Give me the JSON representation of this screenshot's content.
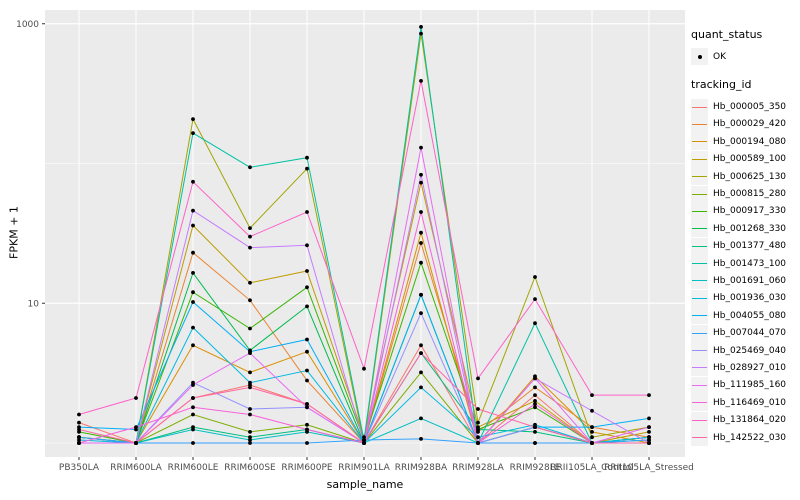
{
  "y_axis": {
    "label": "FPKM + 1",
    "tick_labels": [
      "1000",
      "10"
    ]
  },
  "x_axis": {
    "label": "sample_name"
  },
  "legend": {
    "quant_status_title": "quant_status",
    "ok_label": "OK",
    "tracking_id_title": "tracking_id"
  },
  "colors": {
    "panel_background": "#EBEBEB",
    "gridline": "#FFFFFF",
    "tick_text": "#4D4D4D",
    "point": "#000000",
    "legend_key_background": "#F2F2F2"
  },
  "chart_data": {
    "type": "line",
    "title": "",
    "xlabel": "sample_name",
    "ylabel": "FPKM + 1",
    "y_scale": "log10",
    "y_major_ticks": [
      10,
      1000
    ],
    "y_minor_gridlines": [
      1,
      100
    ],
    "ylim_log": [
      0.9,
      1300
    ],
    "grid": true,
    "legend_position": "right",
    "point_marker": "OK",
    "categories": [
      "PB350LA",
      "RRIM600LA",
      "RRIM600LE",
      "RRIM600SE",
      "RRIM600PE",
      "RRIM901LA",
      "RRIM928BA",
      "RRIM928LA",
      "RRIM928LE",
      "RRII105LA_Control",
      "RRII105LA_Stressed"
    ],
    "series": [
      {
        "name": "Hb_000005_350",
        "color": "#F8766D",
        "values": [
          1.4,
          1.0,
          2.1,
          2.6,
          1.9,
          1.0,
          5.0,
          1.0,
          2.2,
          1.0,
          1.0
        ]
      },
      {
        "name": "Hb_000029_420",
        "color": "#EA8331",
        "values": [
          1.0,
          1.0,
          23,
          10.5,
          2.8,
          1.0,
          27,
          1.2,
          2.5,
          1.3,
          1.1
        ]
      },
      {
        "name": "Hb_000194_080",
        "color": "#D89000",
        "values": [
          1.1,
          1.0,
          5.0,
          3.2,
          4.5,
          1.0,
          32,
          1.0,
          3.0,
          1.2,
          1.0
        ]
      },
      {
        "name": "Hb_000589_100",
        "color": "#C09B00",
        "values": [
          1.0,
          1.0,
          36,
          14,
          17,
          1.1,
          73,
          1.3,
          2.0,
          1.0,
          1.2
        ]
      },
      {
        "name": "Hb_000625_130",
        "color": "#A3A500",
        "values": [
          1.1,
          1.0,
          208,
          34.5,
          92,
          1.0,
          850,
          1.4,
          15.4,
          1.1,
          1.3
        ]
      },
      {
        "name": "Hb_000815_280",
        "color": "#7CAE00",
        "values": [
          1.0,
          1.0,
          1.6,
          1.2,
          1.35,
          1.0,
          3.2,
          1.0,
          1.3,
          1.0,
          1.0
        ]
      },
      {
        "name": "Hb_000917_330",
        "color": "#39B600",
        "values": [
          1.2,
          1.0,
          12,
          6.6,
          13,
          1.05,
          19.5,
          1.25,
          1.8,
          1.0,
          1.1
        ]
      },
      {
        "name": "Hb_001268_330",
        "color": "#00BB4E",
        "values": [
          1.0,
          1.0,
          16.5,
          4.6,
          9.5,
          1.0,
          11.5,
          1.0,
          1.3,
          1.0,
          1.0
        ]
      },
      {
        "name": "Hb_001377_480",
        "color": "#00BF7D",
        "values": [
          1.1,
          1.0,
          1.3,
          1.1,
          1.25,
          1.0,
          4.4,
          1.25,
          1.2,
          1.0,
          1.1
        ]
      },
      {
        "name": "Hb_001473_100",
        "color": "#00C1A3",
        "values": [
          1.0,
          1.0,
          165,
          94,
          110,
          1.05,
          950,
          1.0,
          7.2,
          1.0,
          1.0
        ]
      },
      {
        "name": "Hb_001691_060",
        "color": "#00BFC4",
        "values": [
          1.0,
          1.0,
          1.25,
          1.05,
          1.2,
          1.0,
          1.5,
          1.0,
          1.0,
          1.0,
          1.05
        ]
      },
      {
        "name": "Hb_001936_030",
        "color": "#00BAE0",
        "values": [
          1.05,
          1.0,
          6.7,
          2.7,
          3.3,
          1.0,
          2.5,
          1.1,
          1.35,
          1.0,
          1.1
        ]
      },
      {
        "name": "Hb_004055_080",
        "color": "#00B0F6",
        "values": [
          1.3,
          1.25,
          10.2,
          4.5,
          5.5,
          1.0,
          11.5,
          1.0,
          1.3,
          1.3,
          1.5
        ]
      },
      {
        "name": "Hb_007044_070",
        "color": "#35A2FF",
        "values": [
          1.1,
          1.0,
          1.0,
          1.0,
          1.0,
          1.05,
          1.07,
          1.0,
          1.0,
          1.0,
          1.05
        ]
      },
      {
        "name": "Hb_025469_040",
        "color": "#9590FF",
        "values": [
          1.0,
          1.0,
          2.7,
          1.75,
          1.8,
          1.0,
          8.5,
          1.0,
          1.3,
          1.0,
          1.0
        ]
      },
      {
        "name": "Hb_028927_010",
        "color": "#C77CFF",
        "values": [
          1.0,
          1.0,
          46,
          25,
          26,
          1.0,
          83,
          1.0,
          2.9,
          1.7,
          1.0
        ]
      },
      {
        "name": "Hb_111985_160",
        "color": "#E76BF3",
        "values": [
          1.0,
          1.0,
          2.6,
          4.4,
          1.8,
          1.0,
          130,
          1.0,
          2.9,
          1.0,
          1.3
        ]
      },
      {
        "name": "Hb_116469_010",
        "color": "#FA62DB",
        "values": [
          1.0,
          1.3,
          1.8,
          1.6,
          1.25,
          1.0,
          45,
          1.0,
          1.9,
          1.0,
          1.0
        ]
      },
      {
        "name": "Hb_131864_020",
        "color": "#FF61C9",
        "values": [
          1.6,
          2.1,
          74,
          30,
          45,
          3.4,
          390,
          2.9,
          10.7,
          2.2,
          2.2
        ]
      },
      {
        "name": "Hb_142522_030",
        "color": "#FF67A4",
        "values": [
          1.25,
          1.0,
          2.1,
          2.5,
          1.9,
          1.0,
          4.4,
          1.75,
          1.3,
          1.0,
          1.0
        ]
      }
    ]
  }
}
